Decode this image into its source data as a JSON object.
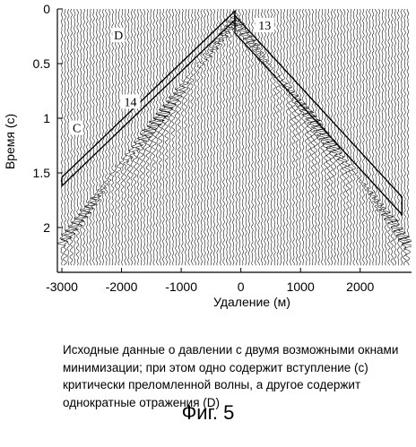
{
  "chart_data": {
    "type": "seismic-gather",
    "ylabel": "Время (с)",
    "xlabel": "Удаление (м)",
    "xlim": [
      -3000,
      2800
    ],
    "ylim": [
      0,
      2.35
    ],
    "y_inverted": true,
    "xticks": [
      -3000,
      -2000,
      -1000,
      0,
      1000,
      2000
    ],
    "yticks": [
      {
        "value": 0,
        "label": "0"
      },
      {
        "value": 0.5,
        "label": "0.5"
      },
      {
        "value": 1,
        "label": "1"
      },
      {
        "value": 1.5,
        "label": "1.5"
      },
      {
        "value": 2,
        "label": "2"
      }
    ],
    "traces_drawn": 110,
    "events": [
      {
        "name": "refraction",
        "apex_x": -100,
        "apex_t": 0.08,
        "slope_s_per_m": 0.00072
      },
      {
        "name": "reflection",
        "apex_x": -100,
        "apex_t": 0.12,
        "slope_s_per_m": 0.00069
      }
    ],
    "annotations": [
      {
        "label": "D",
        "x": -2050,
        "t": 0.27
      },
      {
        "label": "13",
        "x": 400,
        "t": 0.18
      },
      {
        "label": "14",
        "x": -1850,
        "t": 0.88
      },
      {
        "label": "C",
        "x": -2750,
        "t": 1.12
      }
    ],
    "windows": [
      {
        "label": "C",
        "x_from": -3000,
        "x_to": -100,
        "t_top_from": 1.54,
        "t_top_to": 0.02,
        "thickness_s": 0.08
      },
      {
        "label": "D",
        "x_from": -100,
        "x_to": 2700,
        "t_top_from": 0.06,
        "t_top_to": 1.72,
        "thickness_s": 0.16
      }
    ]
  },
  "caption": "Исходные данные о давлении с двумя возможными окнами\nминимизации; при этом одно содержит вступление (с)\nкритически преломленной волны, а другое содержит\nоднократные отражения (D)",
  "figure_label": "Фиг. 5"
}
